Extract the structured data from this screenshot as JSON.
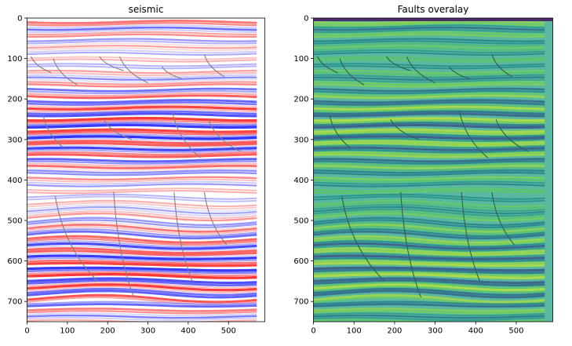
{
  "chart_data": [
    {
      "type": "heatmap",
      "title": "seismic",
      "colormap": "seismic",
      "xlim": [
        0,
        590
      ],
      "ylim": [
        750,
        0
      ],
      "xticks": [
        0,
        100,
        200,
        300,
        400,
        500
      ],
      "yticks": [
        0,
        100,
        200,
        300,
        400,
        500,
        600,
        700
      ],
      "faults": [
        {
          "x": [
            10,
            60
          ],
          "y": [
            95,
            135
          ]
        },
        {
          "x": [
            65,
            125
          ],
          "y": [
            100,
            165
          ]
        },
        {
          "x": [
            180,
            240
          ],
          "y": [
            95,
            130
          ]
        },
        {
          "x": [
            230,
            300
          ],
          "y": [
            95,
            160
          ]
        },
        {
          "x": [
            335,
            385
          ],
          "y": [
            120,
            150
          ]
        },
        {
          "x": [
            440,
            490
          ],
          "y": [
            90,
            145
          ]
        },
        {
          "x": [
            40,
            90
          ],
          "y": [
            240,
            320
          ]
        },
        {
          "x": [
            190,
            260
          ],
          "y": [
            250,
            300
          ]
        },
        {
          "x": [
            360,
            430
          ],
          "y": [
            230,
            345
          ]
        },
        {
          "x": [
            450,
            530
          ],
          "y": [
            250,
            330
          ]
        },
        {
          "x": [
            70,
            175
          ],
          "y": [
            440,
            650
          ]
        },
        {
          "x": [
            215,
            265
          ],
          "y": [
            430,
            690
          ]
        },
        {
          "x": [
            365,
            410
          ],
          "y": [
            430,
            650
          ]
        },
        {
          "x": [
            440,
            495
          ],
          "y": [
            430,
            560
          ]
        }
      ]
    },
    {
      "type": "heatmap",
      "title": "Faults overalay",
      "colormap": "viridis",
      "xlim": [
        0,
        590
      ],
      "ylim": [
        750,
        0
      ],
      "xticks": [
        0,
        100,
        200,
        300,
        400,
        500
      ],
      "yticks": [
        0,
        100,
        200,
        300,
        400,
        500,
        600,
        700
      ],
      "faults": [
        {
          "x": [
            10,
            60
          ],
          "y": [
            95,
            135
          ]
        },
        {
          "x": [
            65,
            125
          ],
          "y": [
            100,
            165
          ]
        },
        {
          "x": [
            180,
            240
          ],
          "y": [
            95,
            130
          ]
        },
        {
          "x": [
            230,
            300
          ],
          "y": [
            95,
            160
          ]
        },
        {
          "x": [
            335,
            385
          ],
          "y": [
            120,
            150
          ]
        },
        {
          "x": [
            440,
            490
          ],
          "y": [
            90,
            145
          ]
        },
        {
          "x": [
            40,
            90
          ],
          "y": [
            240,
            320
          ]
        },
        {
          "x": [
            190,
            260
          ],
          "y": [
            250,
            300
          ]
        },
        {
          "x": [
            360,
            430
          ],
          "y": [
            230,
            345
          ]
        },
        {
          "x": [
            450,
            530
          ],
          "y": [
            250,
            330
          ]
        },
        {
          "x": [
            70,
            175
          ],
          "y": [
            440,
            650
          ]
        },
        {
          "x": [
            215,
            265
          ],
          "y": [
            430,
            690
          ]
        },
        {
          "x": [
            365,
            410
          ],
          "y": [
            430,
            650
          ]
        },
        {
          "x": [
            440,
            495
          ],
          "y": [
            430,
            560
          ]
        }
      ]
    }
  ]
}
